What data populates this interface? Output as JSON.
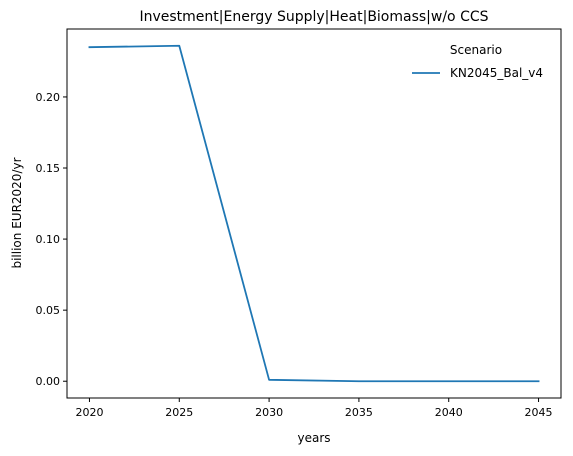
{
  "chart_data": {
    "type": "line",
    "title": "Investment|Energy Supply|Heat|Biomass|w/o CCS",
    "xlabel": "years",
    "ylabel": "billion EUR2020/yr",
    "x": [
      2020,
      2025,
      2030,
      2035,
      2040,
      2045
    ],
    "xticks": [
      "2020",
      "2025",
      "2030",
      "2035",
      "2040",
      "2045"
    ],
    "yticks": [
      "0.00",
      "0.05",
      "0.10",
      "0.15",
      "0.20"
    ],
    "xlim": [
      2018.75,
      2046.25
    ],
    "ylim": [
      -0.0118,
      0.2478
    ],
    "grid": false,
    "legend": {
      "title": "Scenario",
      "placement": "top-right"
    },
    "series": [
      {
        "name": "KN2045_Bal_v4",
        "color": "#1f77b4",
        "values": [
          0.235,
          0.236,
          0.001,
          0.0,
          0.0,
          0.0
        ]
      }
    ]
  }
}
